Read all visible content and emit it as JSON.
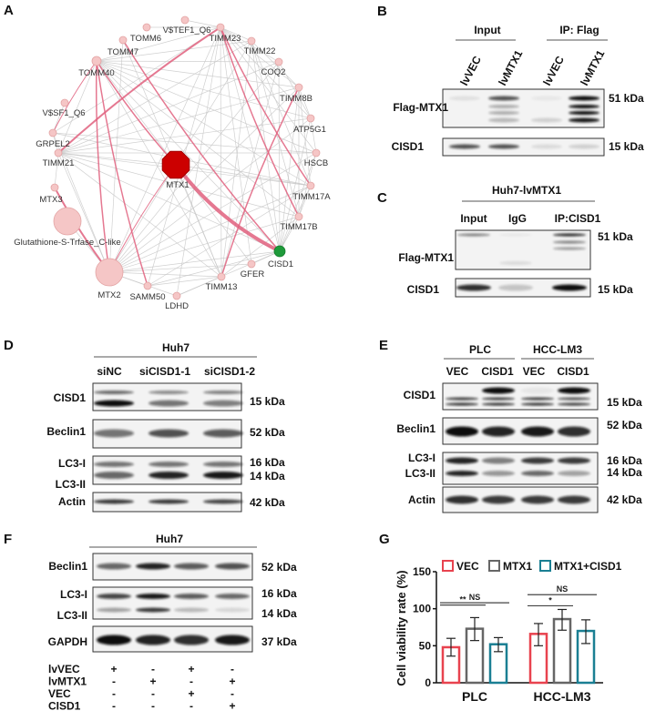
{
  "panels": {
    "A": "A",
    "B": "B",
    "C": "C",
    "D": "D",
    "E": "E",
    "F": "F",
    "G": "G"
  },
  "network": {
    "colors": {
      "node": "#f5c6c6",
      "node_stroke": "#e3a4a4",
      "hub": "#cc0000",
      "target": "#1e9a3a",
      "edge_gray": "#c8c8c8",
      "edge_pink": "#e0607e"
    },
    "nodes": [
      {
        "name": "V$TEF1_Q6"
      },
      {
        "name": "TOMM6"
      },
      {
        "name": "TIMM23"
      },
      {
        "name": "TOMM7"
      },
      {
        "name": "TIMM22"
      },
      {
        "name": "TOMM40"
      },
      {
        "name": "COQ2"
      },
      {
        "name": "TIMM8B"
      },
      {
        "name": "V$SF1_Q6"
      },
      {
        "name": "ATP5G1"
      },
      {
        "name": "GRPEL2"
      },
      {
        "name": "TIMM21"
      },
      {
        "name": "HSCB"
      },
      {
        "name": "MTX1",
        "type": "hub"
      },
      {
        "name": "TIMM17A"
      },
      {
        "name": "MTX3"
      },
      {
        "name": "TIMM17B"
      },
      {
        "name": "Glutathione-S-Trfase_C-like"
      },
      {
        "name": "CISD1",
        "type": "target"
      },
      {
        "name": "GFER"
      },
      {
        "name": "MTX2"
      },
      {
        "name": "TIMM13"
      },
      {
        "name": "SAMM50"
      },
      {
        "name": "LDHD"
      }
    ],
    "pink_edges": [
      [
        "MTX1",
        "CISD1",
        4
      ],
      [
        "TOMM40",
        "MTX1",
        1.5
      ],
      [
        "TOMM40",
        "MTX2",
        1.5
      ],
      [
        "TOMM40",
        "SAMM50",
        1.5
      ],
      [
        "TIMM23",
        "TIMM21",
        2
      ],
      [
        "TIMM23",
        "TIMM17B",
        1.5
      ],
      [
        "TIMM23",
        "TIMM17A",
        1.5
      ],
      [
        "TOMM7",
        "CISD1",
        1.5
      ],
      [
        "TIMM8B",
        "TIMM13",
        1.5
      ],
      [
        "MTX3",
        "MTX2",
        2
      ],
      [
        "MTX1",
        "MTX2",
        1
      ],
      [
        "TOMM40",
        "GRPEL2",
        1
      ]
    ],
    "gray_edges": [
      [
        "TOMM40",
        "TIMM23"
      ],
      [
        "TOMM40",
        "TIMM22"
      ],
      [
        "TOMM40",
        "COQ2"
      ],
      [
        "TOMM40",
        "TIMM8B"
      ],
      [
        "TOMM40",
        "ATP5G1"
      ],
      [
        "TOMM40",
        "HSCB"
      ],
      [
        "TOMM40",
        "TIMM17A"
      ],
      [
        "TOMM40",
        "TIMM17B"
      ],
      [
        "TOMM40",
        "CISD1"
      ],
      [
        "TOMM40",
        "TIMM13"
      ],
      [
        "TOMM40",
        "TIMM21"
      ],
      [
        "TOMM40",
        "GFER"
      ],
      [
        "TIMM23",
        "TIMM22"
      ],
      [
        "TIMM23",
        "COQ2"
      ],
      [
        "TIMM23",
        "TIMM8B"
      ],
      [
        "TIMM23",
        "ATP5G1"
      ],
      [
        "TIMM23",
        "HSCB"
      ],
      [
        "TIMM23",
        "CISD1"
      ],
      [
        "TIMM23",
        "TIMM13"
      ],
      [
        "TIMM23",
        "MTX2"
      ],
      [
        "TIMM23",
        "SAMM50"
      ],
      [
        "TIMM23",
        "GRPEL2"
      ],
      [
        "TIMM23",
        "LDHD"
      ],
      [
        "TIMM22",
        "TIMM8B"
      ],
      [
        "TIMM22",
        "TIMM17A"
      ],
      [
        "TIMM22",
        "TIMM17B"
      ],
      [
        "TIMM22",
        "CISD1"
      ],
      [
        "TIMM22",
        "TIMM21"
      ],
      [
        "TIMM22",
        "MTX2"
      ],
      [
        "TIMM22",
        "TIMM13"
      ],
      [
        "TIMM8B",
        "ATP5G1"
      ],
      [
        "TIMM8B",
        "TIMM17A"
      ],
      [
        "TIMM8B",
        "TIMM17B"
      ],
      [
        "TIMM8B",
        "CISD1"
      ],
      [
        "TIMM8B",
        "TIMM21"
      ],
      [
        "TIMM8B",
        "MTX2"
      ],
      [
        "ATP5G1",
        "HSCB"
      ],
      [
        "ATP5G1",
        "TIMM21"
      ],
      [
        "ATP5G1",
        "CISD1"
      ],
      [
        "ATP5G1",
        "MTX2"
      ],
      [
        "ATP5G1",
        "COQ2"
      ],
      [
        "HSCB",
        "TIMM21"
      ],
      [
        "HSCB",
        "CISD1"
      ],
      [
        "HSCB",
        "MTX2"
      ],
      [
        "HSCB",
        "GRPEL2"
      ],
      [
        "HSCB",
        "TIMM17B"
      ],
      [
        "TIMM17A",
        "TIMM21"
      ],
      [
        "TIMM17A",
        "CISD1"
      ],
      [
        "TIMM17A",
        "MTX2"
      ],
      [
        "TIMM17A",
        "TIMM17B"
      ],
      [
        "TIMM17A",
        "SAMM50"
      ],
      [
        "TIMM17B",
        "CISD1"
      ],
      [
        "TIMM17B",
        "MTX2"
      ],
      [
        "TIMM17B",
        "TIMM21"
      ],
      [
        "TIMM17B",
        "TIMM13"
      ],
      [
        "CISD1",
        "MTX2"
      ],
      [
        "CISD1",
        "TIMM21"
      ],
      [
        "CISD1",
        "GFER"
      ],
      [
        "CISD1",
        "LDHD"
      ],
      [
        "CISD1",
        "SAMM50"
      ],
      [
        "CISD1",
        "COQ2"
      ],
      [
        "MTX2",
        "TIMM21"
      ],
      [
        "MTX2",
        "GRPEL2"
      ],
      [
        "MTX2",
        "TIMM13"
      ],
      [
        "MTX2",
        "SAMM50"
      ],
      [
        "MTX2",
        "LDHD"
      ],
      [
        "MTX2",
        "GFER"
      ],
      [
        "MTX2",
        "COQ2"
      ],
      [
        "MTX2",
        "Glutathione-S-Trfase_C-like"
      ],
      [
        "TIMM21",
        "GRPEL2"
      ],
      [
        "TIMM21",
        "MTX3"
      ],
      [
        "TIMM21",
        "COQ2"
      ],
      [
        "TIMM21",
        "TIMM13"
      ],
      [
        "GRPEL2",
        "V$SF1_Q6"
      ],
      [
        "GRPEL2",
        "TIMM17A"
      ],
      [
        "TOMM7",
        "TIMM13"
      ],
      [
        "TOMM7",
        "MTX2"
      ],
      [
        "TOMM6",
        "TIMM23"
      ],
      [
        "V$TEF1_Q6",
        "TIMM23"
      ],
      [
        "TIMM13",
        "SAMM50"
      ],
      [
        "TIMM13",
        "COQ2"
      ],
      [
        "LDHD",
        "TIMM13"
      ],
      [
        "GFER",
        "TIMM23"
      ],
      [
        "MTX1",
        "TIMM13"
      ],
      [
        "MTX1",
        "TIMM21"
      ],
      [
        "MTX1",
        "TIMM17A"
      ]
    ]
  },
  "B": {
    "groups": [
      "Input",
      "IP: Flag"
    ],
    "lanes": [
      "lvVEC",
      "lvMTX1",
      "lvVEC",
      "lvMTX1"
    ],
    "blots": [
      {
        "label": "Flag-MTX1",
        "kda": [
          "51 kDa"
        ],
        "bands": [
          [
            0.08,
            0.7,
            0.05,
            1
          ],
          [
            0,
            0.3,
            0,
            1
          ],
          [
            0,
            0.3,
            0,
            1
          ],
          [
            0,
            0.25,
            0.15,
            0.95
          ]
        ]
      },
      {
        "label": "CISD1",
        "kda": [
          "15 kDa"
        ],
        "bands": [
          [
            0.7,
            0.7,
            0.1,
            0.15
          ]
        ]
      }
    ]
  },
  "C": {
    "group": "Huh7-lvMTX1",
    "lanes": [
      "Input",
      "IgG",
      "IP:CISD1"
    ],
    "blots": [
      {
        "label": "Flag-MTX1",
        "kda": [
          "51 kDa"
        ],
        "bands": [
          [
            0.5,
            0.05,
            0.9
          ],
          [
            0,
            0,
            0.5
          ],
          [
            0,
            0,
            0.4
          ],
          [
            0,
            0.1,
            0
          ]
        ]
      },
      {
        "label": "CISD1",
        "kda": [
          "15 kDa"
        ],
        "bands": [
          [
            0.85,
            0.2,
            1
          ]
        ]
      }
    ]
  },
  "D": {
    "group": "Huh7",
    "lanes": [
      "siNC",
      "siCISD1-1",
      "siCISD1-2"
    ],
    "blots": [
      {
        "label": "CISD1",
        "kda": [
          "15 kDa"
        ],
        "bands": [
          [
            0.6,
            0.45,
            0.5
          ],
          [
            1,
            0.55,
            0.5
          ]
        ]
      },
      {
        "label": "Beclin1",
        "kda": [
          "52 kDa"
        ],
        "bands": [
          [
            0.55,
            0.7,
            0.65
          ]
        ]
      },
      {
        "label": "LC3-I",
        "label2": "LC3-II",
        "kda": [
          "16 kDa",
          "14 kDa"
        ],
        "bands": [
          [
            0.55,
            0.55,
            0.55
          ],
          [
            0.6,
            0.9,
            0.95
          ]
        ]
      },
      {
        "label": "Actin",
        "kda": [
          "42 kDa"
        ],
        "bands": [
          [
            0.8,
            0.8,
            0.75
          ]
        ]
      }
    ]
  },
  "E": {
    "groups": [
      "PLC",
      "HCC-LM3"
    ],
    "lanes": [
      "VEC",
      "CISD1",
      "VEC",
      "CISD1"
    ],
    "blots": [
      {
        "label": "CISD1",
        "kda": [
          "15 kDa"
        ],
        "bands": [
          [
            0,
            1,
            0.05,
            1
          ],
          [
            0.8,
            0.8,
            0.8,
            0.7
          ],
          [
            0.85,
            0.85,
            0.85,
            0.8
          ]
        ]
      },
      {
        "label": "Beclin1",
        "kda": [
          "52 kDa"
        ],
        "bands": [
          [
            1,
            0.9,
            0.95,
            0.85
          ]
        ]
      },
      {
        "label": "LC3-I",
        "label2": "LC3-II",
        "kda": [
          "16 kDa",
          "14 kDa"
        ],
        "bands": [
          [
            0.9,
            0.5,
            0.8,
            0.8
          ],
          [
            0.9,
            0.4,
            0.6,
            0.35
          ]
        ]
      },
      {
        "label": "Actin",
        "kda": [
          "42 kDa"
        ],
        "bands": [
          [
            0.85,
            0.8,
            0.8,
            0.8
          ]
        ]
      }
    ]
  },
  "F": {
    "group": "Huh7",
    "blots": [
      {
        "label": "Beclin1",
        "kda": [
          "52 kDa"
        ],
        "bands": [
          [
            0.6,
            0.9,
            0.65,
            0.7
          ]
        ]
      },
      {
        "label": "LC3-I",
        "label2": "LC3-II",
        "kda": [
          "16 kDa",
          "14 kDa"
        ],
        "bands": [
          [
            0.75,
            0.95,
            0.65,
            0.6
          ],
          [
            0.35,
            0.8,
            0.25,
            0.12
          ]
        ]
      },
      {
        "label": "GAPDH",
        "kda": [
          "37 kDa"
        ],
        "bands": [
          [
            1,
            0.9,
            0.85,
            0.95
          ]
        ]
      }
    ],
    "conditions": [
      {
        "name": "lvVEC",
        "values": [
          "+",
          "-",
          "+",
          "-"
        ]
      },
      {
        "name": "lvMTX1",
        "values": [
          "-",
          "+",
          "-",
          "+"
        ]
      },
      {
        "name": "VEC",
        "values": [
          "-",
          "-",
          "+",
          "-"
        ]
      },
      {
        "name": "CISD1",
        "values": [
          "-",
          "-",
          "-",
          "+"
        ]
      }
    ]
  },
  "chart_data": {
    "type": "bar",
    "ylabel": "Cell viability rate (%)",
    "ylim": [
      0,
      150
    ],
    "yticks": [
      "0",
      "50",
      "100",
      "150"
    ],
    "categories": [
      "PLC",
      "HCC-LM3"
    ],
    "series": [
      {
        "name": "VEC",
        "color": "#e8434f",
        "values": [
          48,
          66
        ],
        "err_low": [
          36,
          50
        ],
        "err_high": [
          60,
          80
        ]
      },
      {
        "name": "MTX1",
        "color": "#666666",
        "values": [
          73,
          86
        ],
        "err_low": [
          57,
          71
        ],
        "err_high": [
          88,
          99
        ]
      },
      {
        "name": "MTX1+CISD1",
        "color": "#1a7f93",
        "values": [
          52,
          70
        ],
        "err_low": [
          42,
          53
        ],
        "err_high": [
          61,
          85
        ]
      }
    ],
    "significance": [
      {
        "category": "PLC",
        "from": "VEC",
        "to": "MTX1",
        "label": "**",
        "y": 105
      },
      {
        "category": "PLC",
        "from": "VEC",
        "to": "MTX1+CISD1",
        "label": "NS",
        "y": 108
      },
      {
        "category": "HCC-LM3",
        "from": "VEC",
        "to": "MTX1",
        "label": "*",
        "y": 104
      },
      {
        "category": "HCC-LM3",
        "from": "VEC",
        "to": "MTX1+CISD1",
        "label": "NS",
        "y": 119
      }
    ],
    "legend_placement": "top",
    "grid": false
  }
}
